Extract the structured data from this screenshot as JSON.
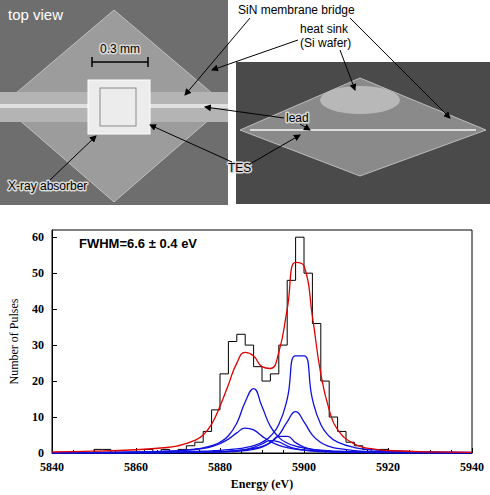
{
  "photos": {
    "title": "top view",
    "scale": "0.3 mm",
    "labels": {
      "membrane": "SiN membrane bridge",
      "heat_sink": [
        "heat sink",
        "(Si wafer)"
      ],
      "absorber": "X-ray absorber",
      "lead": "lead",
      "tes": "TES"
    }
  },
  "chart_data": {
    "type": "histogram",
    "annotation": "FWHM=6.6 ± 0.4 eV",
    "x_label": "Energy (eV)",
    "y_label": "Number of Pulses",
    "bins": [
      5840,
      5842,
      5844,
      5846,
      5848,
      5850,
      5852,
      5854,
      5856,
      5858,
      5860,
      5862,
      5864,
      5866,
      5868,
      5870,
      5872,
      5874,
      5876,
      5878,
      5880,
      5882,
      5884,
      5886,
      5888,
      5890,
      5892,
      5894,
      5896,
      5898,
      5900,
      5902,
      5904,
      5906,
      5908,
      5910,
      5912,
      5914,
      5916,
      5918,
      5920,
      5922,
      5924,
      5926,
      5928,
      5930,
      5932,
      5934,
      5936,
      5938,
      5940
    ],
    "counts": [
      0,
      0,
      0,
      0,
      0,
      1,
      1,
      0,
      0,
      0,
      0,
      1,
      0,
      1,
      0,
      1,
      2,
      3,
      6,
      12,
      22,
      31,
      33,
      30,
      24,
      20,
      22,
      30,
      48,
      60,
      50,
      36,
      20,
      10,
      6,
      3,
      2,
      1,
      0,
      1,
      0,
      0,
      0,
      0,
      0,
      0,
      0,
      0,
      0,
      0
    ],
    "color": "#000000",
    "fits": {
      "x": [
        5840,
        5850,
        5860,
        5866,
        5870,
        5874,
        5876,
        5878,
        5880,
        5882,
        5884,
        5886,
        5888,
        5890,
        5892,
        5894,
        5896,
        5898,
        5900,
        5902,
        5904,
        5906,
        5908,
        5912,
        5916,
        5920,
        5930,
        5940
      ],
      "series": [
        {
          "type": "line",
          "color": "#1010e0",
          "values": [
            0.1,
            0.15,
            0.28,
            0.45,
            0.67,
            1.09,
            1.45,
            2.04,
            3.0,
            4.8,
            8.3,
            14.2,
            17.9,
            12.9,
            7.4,
            4.35,
            2.77,
            1.9,
            1.37,
            1.03,
            0.8,
            0.64,
            0.52,
            0.37,
            0.27,
            0.21,
            0.12,
            0.08
          ]
        },
        {
          "type": "line",
          "color": "#1010e0",
          "values": [
            0.08,
            0.11,
            0.18,
            0.25,
            0.32,
            0.43,
            0.5,
            0.6,
            0.73,
            0.91,
            1.15,
            1.52,
            2.08,
            3.0,
            4.66,
            7.9,
            15,
            27,
            27,
            15,
            7.9,
            4.66,
            3.0,
            1.52,
            0.91,
            0.6,
            0.28,
            0.16
          ]
        },
        {
          "type": "line",
          "color": "#1010e0",
          "values": [
            0.04,
            0.06,
            0.1,
            0.14,
            0.18,
            0.24,
            0.28,
            0.34,
            0.42,
            0.53,
            0.68,
            0.9,
            1.26,
            1.85,
            2.92,
            4.98,
            8.67,
            11.5,
            8.67,
            4.98,
            2.92,
            1.85,
            1.26,
            0.68,
            0.42,
            0.28,
            0.14,
            0.08
          ]
        },
        {
          "type": "line",
          "color": "#1010e0",
          "values": [
            0.08,
            0.13,
            0.24,
            0.39,
            0.59,
            0.97,
            1.29,
            1.8,
            2.6,
            3.87,
            5.6,
            6.93,
            6.42,
            4.7,
            3.17,
            2.15,
            1.52,
            1.11,
            0.84,
            0.66,
            0.53,
            0.43,
            0.36,
            0.26,
            0.2,
            0.15,
            0.09,
            0.06
          ]
        },
        {
          "type": "line",
          "color": "#1010e0",
          "values": [
            0.02,
            0.03,
            0.05,
            0.07,
            0.1,
            0.14,
            0.16,
            0.2,
            0.26,
            0.34,
            0.46,
            0.66,
            1.0,
            1.64,
            2.88,
            4.62,
            4.62,
            2.88,
            1.64,
            1.0,
            0.66,
            0.46,
            0.34,
            0.2,
            0.14,
            0.1,
            0.05,
            0.03
          ]
        },
        {
          "type": "line",
          "color": "#1010e0",
          "values": [
            0.02,
            0.03,
            0.05,
            0.08,
            0.11,
            0.16,
            0.19,
            0.25,
            0.33,
            0.44,
            0.63,
            0.96,
            1.54,
            2.52,
            3.44,
            3.07,
            1.98,
            1.21,
            0.77,
            0.53,
            0.38,
            0.28,
            0.22,
            0.14,
            0.1,
            0.07,
            0.04,
            0.02
          ]
        },
        {
          "type": "line",
          "color": "#e00000",
          "values": [
            0.3,
            0.5,
            0.9,
            1.4,
            2,
            3.5,
            5,
            8,
            13,
            19,
            25,
            28,
            27,
            24,
            23.5,
            28,
            40,
            53,
            52,
            38,
            22,
            12,
            6.5,
            2.5,
            1.2,
            0.7,
            0.3,
            0.2
          ]
        }
      ]
    },
    "xlim": [
      5840,
      5940
    ],
    "xticks": [
      5840,
      5860,
      5880,
      5900,
      5920,
      5940
    ],
    "ylim": [
      0,
      62
    ],
    "yticks": [
      0,
      10,
      20,
      30,
      40,
      50,
      60
    ],
    "grid": false
  }
}
